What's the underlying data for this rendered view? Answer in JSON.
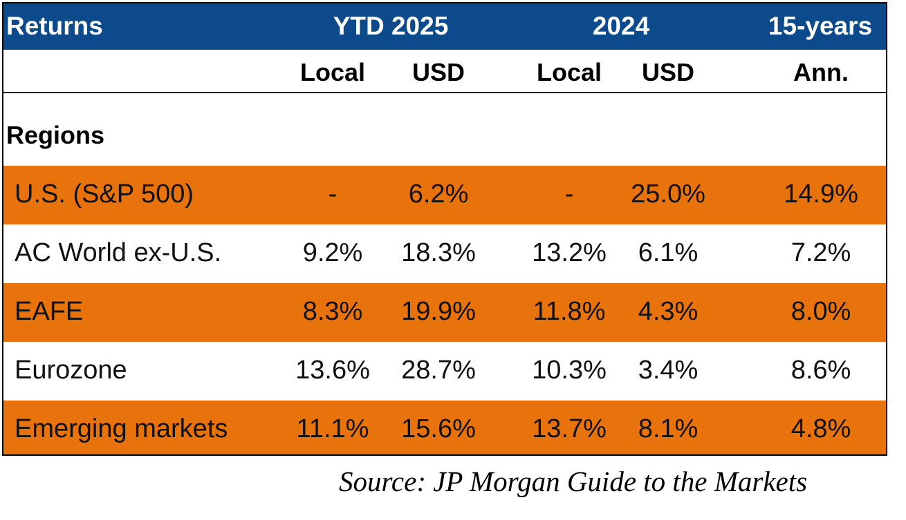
{
  "chart_data": {
    "type": "table",
    "title": "Returns",
    "column_groups": [
      {
        "label": "YTD 2025",
        "subcolumns": [
          "Local",
          "USD"
        ]
      },
      {
        "label": "2024",
        "subcolumns": [
          "Local",
          "USD"
        ]
      },
      {
        "label": "15-years",
        "subcolumns": [
          "Ann."
        ]
      }
    ],
    "columns": [
      "YTD 2025 Local",
      "YTD 2025 USD",
      "2024 Local",
      "2024 USD",
      "15-years Ann."
    ],
    "section_label": "Regions",
    "rows": [
      {
        "label": "U.S. (S&P 500)",
        "ytd_local": "-",
        "ytd_usd": "6.2%",
        "y2024_local": "-",
        "y2024_usd": "25.0%",
        "ann15": "14.9%",
        "highlight": true
      },
      {
        "label": "AC World ex-U.S.",
        "ytd_local": "9.2%",
        "ytd_usd": "18.3%",
        "y2024_local": "13.2%",
        "y2024_usd": "6.1%",
        "ann15": "7.2%",
        "highlight": false
      },
      {
        "label": "EAFE",
        "ytd_local": "8.3%",
        "ytd_usd": "19.9%",
        "y2024_local": "11.8%",
        "y2024_usd": "4.3%",
        "ann15": "8.0%",
        "highlight": true
      },
      {
        "label": "Eurozone",
        "ytd_local": "13.6%",
        "ytd_usd": "28.7%",
        "y2024_local": "10.3%",
        "y2024_usd": "3.4%",
        "ann15": "8.6%",
        "highlight": false
      },
      {
        "label": "Emerging markets",
        "ytd_local": "11.1%",
        "ytd_usd": "15.6%",
        "y2024_local": "13.7%",
        "y2024_usd": "8.1%",
        "ann15": "4.8%",
        "highlight": true
      }
    ]
  },
  "source": "Source: JP Morgan Guide to the Markets",
  "colors": {
    "header_bg": "#0d4a8c",
    "highlight_bg": "#e8730c",
    "plain_bg": "#ffffff"
  }
}
